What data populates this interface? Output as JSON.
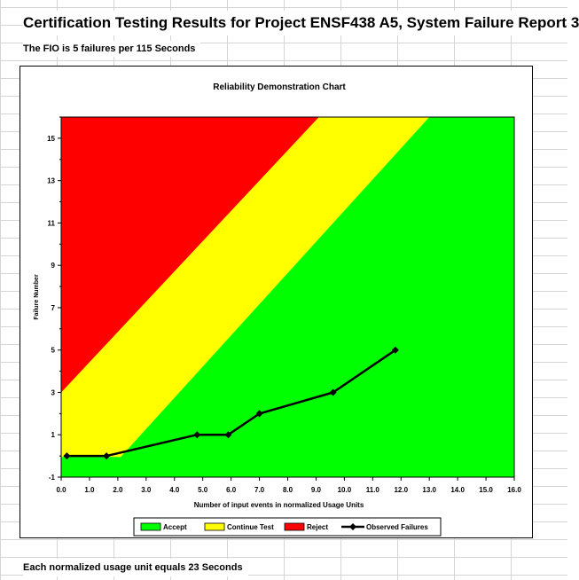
{
  "sheet": {
    "title": "Certification Testing Results for Project ENSF438 A5, System Failure Report  3",
    "fio_text": "The FIO is 5 failures per 115 Seconds",
    "footer": "Each normalized usage unit equals 23 Seconds"
  },
  "colors": {
    "reject": "#ff0000",
    "continue": "#ffff00",
    "accept": "#00ff00",
    "observed": "#000000"
  },
  "chart_data": {
    "type": "line",
    "title": "Reliability Demonstration Chart",
    "xlabel": "Number of input events in normalized Usage Units",
    "ylabel": "Failure Number",
    "xlim": [
      0,
      16
    ],
    "ylim": [
      -1,
      16
    ],
    "x_ticks": [
      "0.0",
      "1.0",
      "2.0",
      "3.0",
      "4.0",
      "5.0",
      "6.0",
      "7.0",
      "8.0",
      "9.0",
      "10.0",
      "11.0",
      "12.0",
      "13.0",
      "14.0",
      "15.0",
      "16.0"
    ],
    "y_ticks": [
      "-1",
      "1",
      "3",
      "5",
      "7",
      "9",
      "11",
      "13",
      "15"
    ],
    "y_tick_values": [
      -1,
      1,
      3,
      5,
      7,
      9,
      11,
      13,
      15
    ],
    "grid": false,
    "legend_position": "bottom",
    "regions": {
      "reject_boundary": [
        [
          0,
          3.0
        ],
        [
          9.1,
          16
        ]
      ],
      "accept_boundary": [
        [
          0,
          -0.05
        ],
        [
          2.1,
          -0.05
        ],
        [
          13.0,
          16
        ]
      ]
    },
    "legend": [
      "Accept",
      "Continue Test",
      "Reject",
      "Observed Failures"
    ],
    "series": [
      {
        "name": "Observed Failures",
        "x": [
          0.2,
          1.6,
          4.8,
          5.9,
          7.0,
          9.6,
          11.8
        ],
        "y": [
          0,
          0,
          1,
          1,
          2,
          3,
          5
        ]
      }
    ]
  }
}
